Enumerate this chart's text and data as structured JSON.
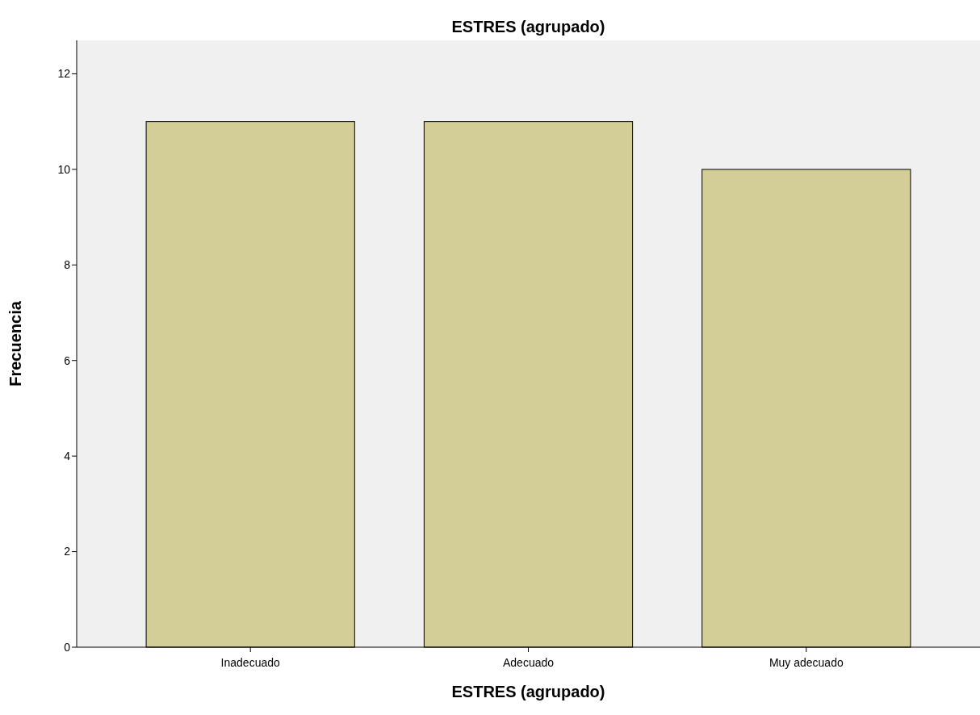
{
  "chart_data": {
    "type": "bar",
    "title": "ESTRES (agrupado)",
    "xlabel": "ESTRES (agrupado)",
    "ylabel": "Frecuencia",
    "categories": [
      "Inadecuado",
      "Adecuado",
      "Muy adecuado"
    ],
    "values": [
      11,
      11,
      10
    ],
    "color": "#d3ce97",
    "ylim": [
      0,
      12.7
    ],
    "yticks": [
      0,
      2,
      4,
      6,
      8,
      10,
      12
    ],
    "grid": false
  }
}
